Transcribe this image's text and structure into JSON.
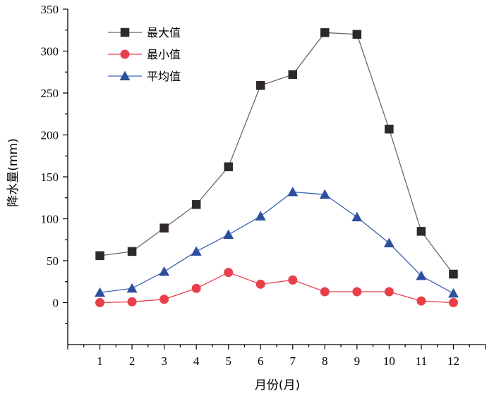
{
  "chart_data": {
    "type": "line",
    "title": "",
    "xlabel": "月份(月)",
    "ylabel": "降水量(mm)",
    "categories": [
      "1",
      "2",
      "3",
      "4",
      "5",
      "6",
      "7",
      "8",
      "9",
      "10",
      "11",
      "12"
    ],
    "xlim": [
      0,
      13
    ],
    "ylim": [
      -50,
      350
    ],
    "yticks": [
      "0",
      "50",
      "100",
      "150",
      "200",
      "250",
      "300",
      "350"
    ],
    "legend_position": "top-left",
    "grid": false,
    "series": [
      {
        "name": "最大值",
        "color": "#6e6565",
        "marker": "square",
        "values": [
          56,
          61,
          89,
          117,
          162,
          259,
          272,
          322,
          320,
          207,
          85,
          34
        ]
      },
      {
        "name": "最小值",
        "color": "#e8404a",
        "marker": "circle",
        "values": [
          0,
          1,
          4,
          17,
          36,
          22,
          27,
          13,
          13,
          13,
          2,
          0
        ]
      },
      {
        "name": "平均值",
        "color": "#3b63b0",
        "marker": "triangle",
        "values": [
          12,
          17,
          37,
          61,
          81,
          103,
          132,
          129,
          102,
          71,
          32,
          11
        ]
      }
    ]
  }
}
